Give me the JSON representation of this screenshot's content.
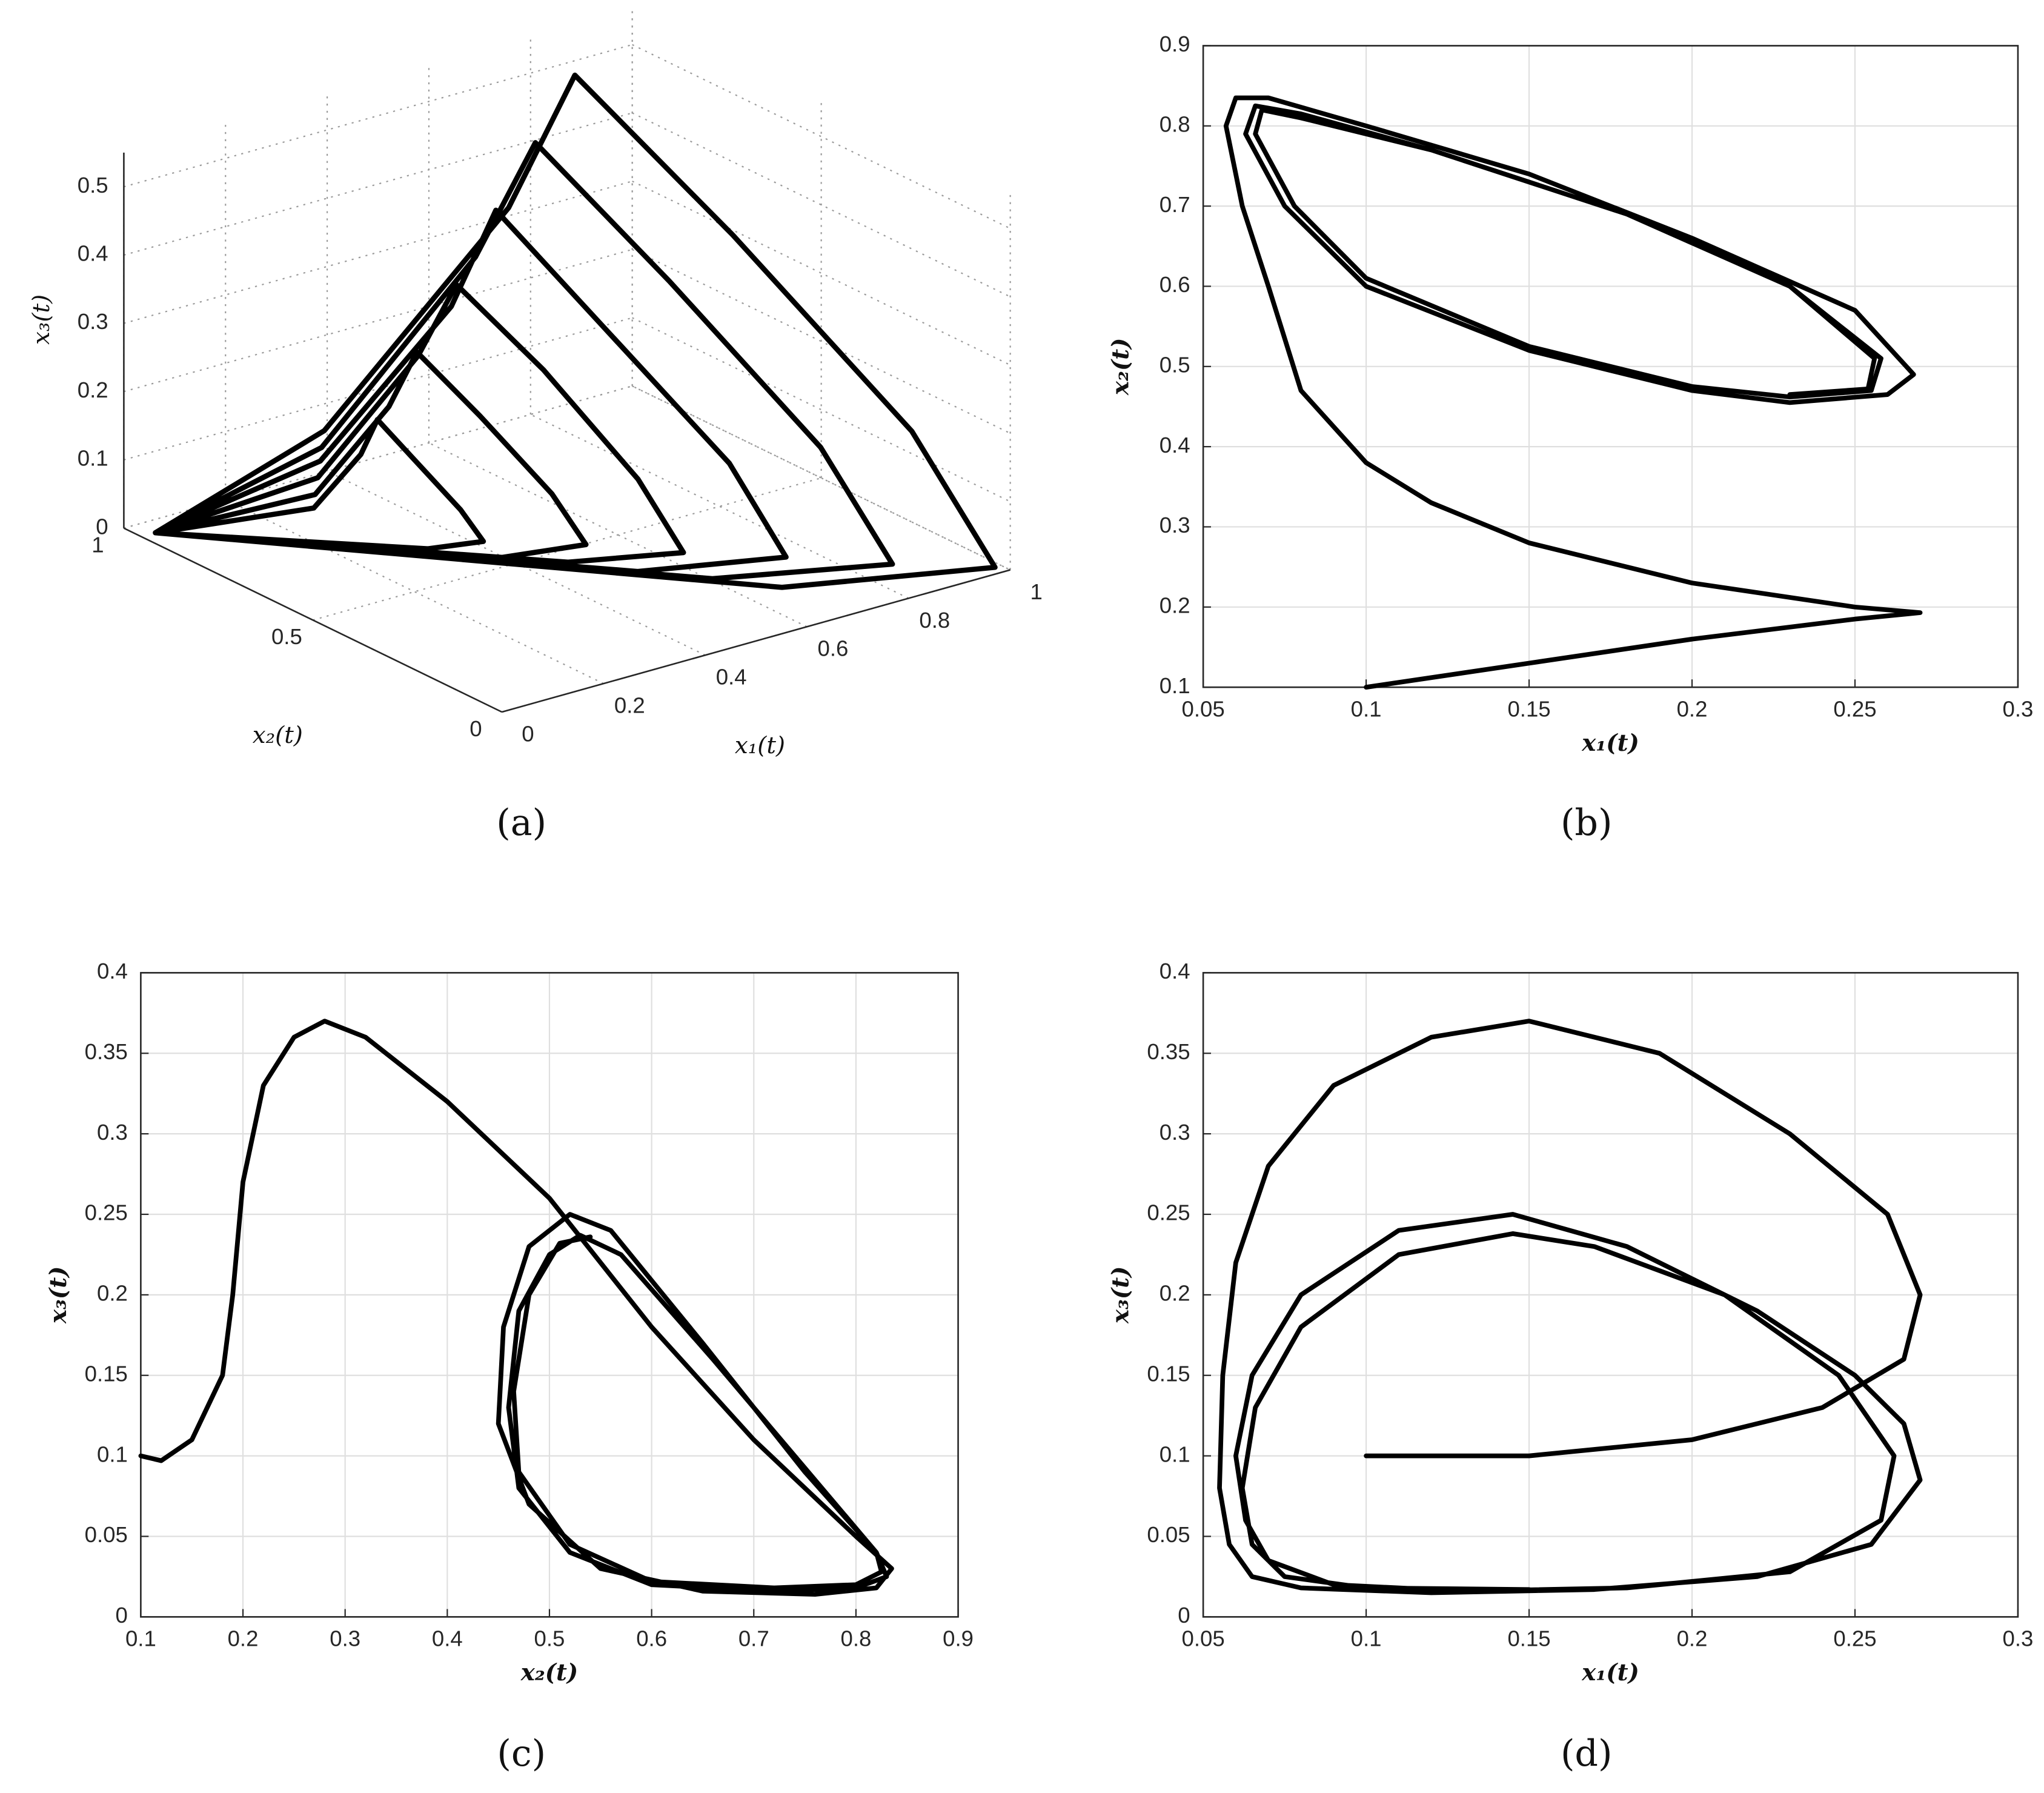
{
  "chart_data": [
    {
      "type": "line3d",
      "caption": "(a)",
      "xlabel": "x₁(t)",
      "ylabel": "x₂(t)",
      "zlabel": "x₃(t)",
      "xlim": [
        0,
        1
      ],
      "ylim": [
        0,
        1
      ],
      "zlim": [
        0,
        0.55
      ],
      "xticks": [
        0,
        0.2,
        0.4,
        0.6,
        0.8,
        1
      ],
      "yticks": [
        0,
        0.5,
        1
      ],
      "zticks": [
        0,
        0.1,
        0.2,
        0.3,
        0.4,
        0.5
      ],
      "grid": true,
      "series": [
        {
          "color": "#000000",
          "x": [
            0.01,
            0.21,
            0.31,
            0.35,
            0.36,
            0.38,
            0.38,
            0.3,
            0.01,
            0.22,
            0.38,
            0.45,
            0.47,
            0.5,
            0.5,
            0.38,
            0.01,
            0.24,
            0.46,
            0.55,
            0.58,
            0.61,
            0.61,
            0.45,
            0.01,
            0.26,
            0.54,
            0.65,
            0.68,
            0.73,
            0.73,
            0.52,
            0.01,
            0.27,
            0.61,
            0.75,
            0.79,
            0.85,
            0.85,
            0.6,
            0.01,
            0.29,
            0.69,
            0.85,
            0.9,
            0.97,
            0.97,
            0.67,
            0.01
          ],
          "y": [
            0.93,
            0.78,
            0.79,
            0.8,
            0.71,
            0.62,
            0.56,
            0.6,
            0.93,
            0.79,
            0.81,
            0.83,
            0.69,
            0.54,
            0.45,
            0.51,
            0.93,
            0.81,
            0.84,
            0.86,
            0.67,
            0.46,
            0.34,
            0.43,
            0.93,
            0.83,
            0.86,
            0.89,
            0.65,
            0.38,
            0.23,
            0.34,
            0.93,
            0.84,
            0.89,
            0.92,
            0.62,
            0.3,
            0.11,
            0.25,
            0.93,
            0.86,
            0.91,
            0.95,
            0.6,
            0.22,
            0.0,
            0.16,
            0.93
          ],
          "z": [
            0.01,
            0.045,
            0.1,
            0.14,
            0.1,
            0.05,
            0.02,
            0.015,
            0.01,
            0.06,
            0.15,
            0.21,
            0.15,
            0.07,
            0.02,
            0.01,
            0.01,
            0.075,
            0.2,
            0.28,
            0.2,
            0.09,
            0.015,
            0.01,
            0.01,
            0.09,
            0.25,
            0.36,
            0.25,
            0.11,
            0.013,
            0.006,
            0.01,
            0.105,
            0.3,
            0.43,
            0.3,
            0.13,
            0.01,
            0.003,
            0.01,
            0.12,
            0.35,
            0.5,
            0.35,
            0.15,
            0.01,
            0,
            0.01
          ]
        }
      ]
    },
    {
      "type": "line",
      "caption": "(b)",
      "xlabel": "x₁(t)",
      "ylabel": "x₂(t)",
      "xlim": [
        0.05,
        0.3
      ],
      "ylim": [
        0.1,
        0.9
      ],
      "xticks": [
        0.05,
        0.1,
        0.15,
        0.2,
        0.25,
        0.3
      ],
      "yticks": [
        0.1,
        0.2,
        0.3,
        0.4,
        0.5,
        0.6,
        0.7,
        0.8,
        0.9
      ],
      "grid": true,
      "series": [
        {
          "color": "#000000",
          "x": [
            0.1,
            0.15,
            0.2,
            0.25,
            0.27,
            0.25,
            0.2,
            0.15,
            0.12,
            0.1,
            0.08,
            0.07,
            0.062,
            0.057,
            0.06,
            0.07,
            0.1,
            0.15,
            0.2,
            0.25,
            0.268,
            0.26,
            0.23,
            0.2,
            0.15,
            0.1,
            0.075,
            0.063,
            0.066,
            0.08,
            0.12,
            0.18,
            0.23,
            0.258,
            0.255,
            0.23,
            0.2,
            0.15,
            0.1,
            0.078,
            0.066,
            0.068,
            0.08,
            0.12,
            0.18,
            0.23,
            0.256,
            0.254,
            0.23
          ],
          "values": [
            0.1,
            0.13,
            0.16,
            0.185,
            0.193,
            0.2,
            0.23,
            0.28,
            0.33,
            0.38,
            0.47,
            0.6,
            0.7,
            0.8,
            0.835,
            0.835,
            0.8,
            0.74,
            0.66,
            0.57,
            0.49,
            0.465,
            0.455,
            0.47,
            0.52,
            0.6,
            0.7,
            0.79,
            0.825,
            0.815,
            0.77,
            0.69,
            0.6,
            0.51,
            0.47,
            0.462,
            0.475,
            0.525,
            0.61,
            0.7,
            0.79,
            0.82,
            0.81,
            0.77,
            0.69,
            0.6,
            0.51,
            0.472,
            0.465
          ]
        }
      ]
    },
    {
      "type": "line",
      "caption": "(c)",
      "xlabel": "x₂(t)",
      "ylabel": "x₃(t)",
      "xlim": [
        0.1,
        0.9
      ],
      "ylim": [
        0,
        0.4
      ],
      "xticks": [
        0.1,
        0.2,
        0.3,
        0.4,
        0.5,
        0.6,
        0.7,
        0.8,
        0.9
      ],
      "yticks": [
        0,
        0.05,
        0.1,
        0.15,
        0.2,
        0.25,
        0.3,
        0.35,
        0.4
      ],
      "grid": true,
      "series": [
        {
          "color": "#000000",
          "x": [
            0.1,
            0.12,
            0.15,
            0.18,
            0.19,
            0.2,
            0.22,
            0.25,
            0.28,
            0.32,
            0.4,
            0.5,
            0.6,
            0.7,
            0.8,
            0.835,
            0.82,
            0.76,
            0.65,
            0.55,
            0.48,
            0.45,
            0.455,
            0.48,
            0.52,
            0.56,
            0.65,
            0.75,
            0.82,
            0.83,
            0.8,
            0.72,
            0.6,
            0.52,
            0.47,
            0.46,
            0.47,
            0.5,
            0.53,
            0.57,
            0.66,
            0.76,
            0.82,
            0.825,
            0.8,
            0.72,
            0.6,
            0.52,
            0.47,
            0.465,
            0.48,
            0.51,
            0.54
          ],
          "values": [
            0.1,
            0.097,
            0.11,
            0.15,
            0.2,
            0.27,
            0.33,
            0.36,
            0.37,
            0.36,
            0.32,
            0.26,
            0.18,
            0.11,
            0.05,
            0.03,
            0.018,
            0.014,
            0.016,
            0.03,
            0.07,
            0.12,
            0.18,
            0.23,
            0.25,
            0.24,
            0.17,
            0.09,
            0.04,
            0.025,
            0.018,
            0.016,
            0.02,
            0.04,
            0.08,
            0.13,
            0.19,
            0.225,
            0.237,
            0.225,
            0.16,
            0.085,
            0.04,
            0.028,
            0.02,
            0.018,
            0.022,
            0.045,
            0.09,
            0.14,
            0.2,
            0.232,
            0.236
          ]
        }
      ]
    },
    {
      "type": "line",
      "caption": "(d)",
      "xlabel": "x₁(t)",
      "ylabel": "x₃(t)",
      "xlim": [
        0.05,
        0.3
      ],
      "ylim": [
        0,
        0.4
      ],
      "xticks": [
        0.05,
        0.1,
        0.15,
        0.2,
        0.25,
        0.3
      ],
      "yticks": [
        0,
        0.05,
        0.1,
        0.15,
        0.2,
        0.25,
        0.3,
        0.35,
        0.4
      ],
      "grid": true,
      "series": [
        {
          "color": "#000000",
          "x": [
            0.1,
            0.15,
            0.2,
            0.24,
            0.265,
            0.27,
            0.26,
            0.23,
            0.19,
            0.15,
            0.12,
            0.09,
            0.07,
            0.06,
            0.056,
            0.055,
            0.058,
            0.065,
            0.08,
            0.12,
            0.17,
            0.22,
            0.255,
            0.27,
            0.265,
            0.25,
            0.22,
            0.18,
            0.145,
            0.11,
            0.08,
            0.065,
            0.06,
            0.063,
            0.07,
            0.09,
            0.13,
            0.18,
            0.23,
            0.258,
            0.262,
            0.245,
            0.21,
            0.17,
            0.145,
            0.11,
            0.08,
            0.066,
            0.062,
            0.065,
            0.075,
            0.1,
            0.15
          ],
          "values": [
            0.1,
            0.1,
            0.11,
            0.13,
            0.16,
            0.2,
            0.25,
            0.3,
            0.35,
            0.37,
            0.36,
            0.33,
            0.28,
            0.22,
            0.15,
            0.08,
            0.045,
            0.025,
            0.018,
            0.015,
            0.017,
            0.025,
            0.045,
            0.085,
            0.12,
            0.15,
            0.19,
            0.23,
            0.25,
            0.24,
            0.2,
            0.15,
            0.1,
            0.06,
            0.035,
            0.02,
            0.016,
            0.018,
            0.028,
            0.06,
            0.1,
            0.15,
            0.2,
            0.23,
            0.238,
            0.225,
            0.18,
            0.13,
            0.08,
            0.045,
            0.025,
            0.018,
            0.017
          ]
        }
      ]
    }
  ]
}
